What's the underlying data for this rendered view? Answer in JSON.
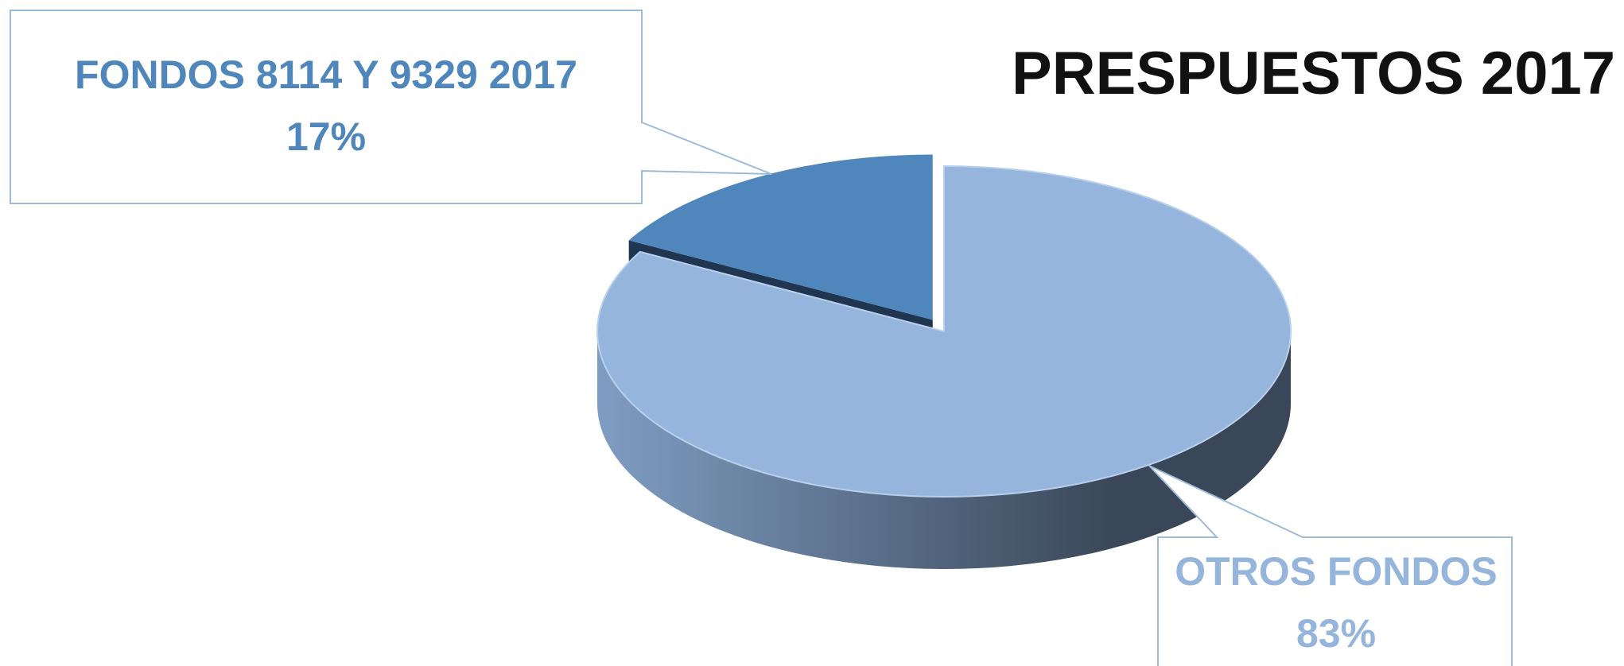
{
  "chart_data": {
    "type": "pie",
    "title": "PRESPUESTOS 2017",
    "categories": [
      "FONDOS 8114 Y 9329 2017",
      "OTROS FONDOS"
    ],
    "values": [
      17,
      83
    ],
    "value_labels": [
      "17%",
      "83%"
    ],
    "colors": [
      "#4f86bb",
      "#95b5dc"
    ],
    "three_d": true
  }
}
